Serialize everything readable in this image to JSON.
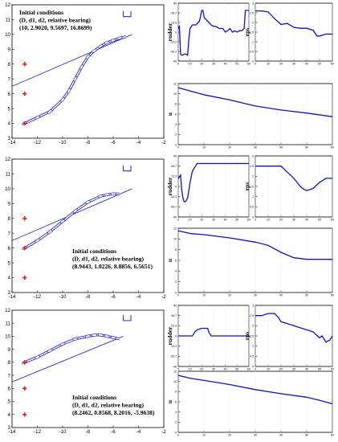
{
  "chart_data": [
    {
      "type": "line",
      "panel": "trajectory",
      "row": 0,
      "xlim": [
        -14,
        -2
      ],
      "ylim": [
        3,
        12
      ],
      "xticks": [
        -14,
        -12,
        -10,
        -8,
        -6,
        -4,
        -2
      ],
      "yticks": [
        3,
        4,
        5,
        6,
        7,
        8,
        9,
        10,
        11,
        12
      ],
      "annotation": [
        "Initial conditions",
        "(D, d1, d2, relative bearing)",
        "(10, 2.9020, 9.5697, 16.8699)"
      ],
      "markers": [
        {
          "x": -13,
          "y": 8
        },
        {
          "x": -13,
          "y": 6
        },
        {
          "x": -13,
          "y": 4
        }
      ],
      "reference_line": [
        {
          "x": -14,
          "y": 6.5
        },
        {
          "x": -4.5,
          "y": 10
        }
      ],
      "dock": {
        "x": [
          -5.2,
          -4.6
        ],
        "y": 11.2
      },
      "trajectory": {
        "x": [
          -13,
          -12,
          -11,
          -10,
          -9.5,
          -9,
          -8.5,
          -8,
          -7.5,
          -7,
          -6.5,
          -6,
          -5.5,
          -5
        ],
        "y": [
          4,
          4.4,
          4.8,
          5.6,
          6.2,
          7,
          7.8,
          8.5,
          8.9,
          9.2,
          9.45,
          9.6,
          9.75,
          9.85
        ]
      }
    },
    {
      "type": "line",
      "panel": "rudder",
      "row": 0,
      "ylabel": "rudder",
      "xlim": [
        0,
        60
      ],
      "ylim": [
        -40,
        40
      ],
      "xticks": [
        0,
        10,
        20,
        30,
        40,
        50,
        60
      ],
      "series": [
        {
          "x": [
            0,
            1,
            2,
            3,
            6,
            8,
            9,
            10,
            12,
            15,
            18,
            20,
            21,
            22,
            25,
            28,
            30,
            32,
            35,
            38,
            40,
            42,
            44,
            46,
            48,
            50,
            52,
            54,
            56,
            57,
            58,
            60
          ],
          "values": [
            5,
            8,
            -30,
            -32,
            -30,
            -32,
            -10,
            5,
            10,
            10,
            15,
            30,
            30,
            20,
            15,
            10,
            8,
            8,
            5,
            5,
            0,
            2,
            5,
            0,
            2,
            0,
            2,
            2,
            5,
            30,
            30,
            30
          ]
        }
      ]
    },
    {
      "type": "line",
      "panel": "rps",
      "row": 0,
      "ylabel": "rps",
      "xlim": [
        0,
        60
      ],
      "ylim": [
        0,
        3
      ],
      "xticks": [
        0,
        10,
        20,
        30,
        40,
        50,
        60
      ],
      "series": [
        {
          "x": [
            0,
            5,
            10,
            15,
            20,
            25,
            30,
            35,
            40,
            45,
            48,
            50,
            55,
            60
          ],
          "values": [
            2.6,
            2.6,
            2.55,
            2.2,
            1.9,
            1.95,
            1.75,
            1.7,
            1.7,
            1.6,
            1.3,
            1.3,
            1.4,
            1.4
          ]
        }
      ]
    },
    {
      "type": "line",
      "panel": "u",
      "row": 0,
      "ylabel": "u",
      "xlim": [
        0,
        60
      ],
      "ylim": [
        0,
        12
      ],
      "xticks": [
        0,
        10,
        20,
        30,
        40,
        50,
        60
      ],
      "series": [
        {
          "x": [
            0,
            5,
            10,
            20,
            30,
            40,
            50,
            60
          ],
          "values": [
            11.2,
            10.5,
            9.8,
            8.8,
            7.6,
            6.8,
            6.2,
            5.5
          ]
        }
      ]
    },
    {
      "type": "line",
      "panel": "trajectory",
      "row": 1,
      "xlim": [
        -14,
        -2
      ],
      "ylim": [
        3,
        12
      ],
      "xticks": [
        -14,
        -12,
        -10,
        -8,
        -6,
        -4,
        -2
      ],
      "yticks": [
        3,
        4,
        5,
        6,
        7,
        8,
        9,
        10,
        11,
        12
      ],
      "annotation": [
        "Initial conditions",
        "(D, d1, d2, relative bearing)",
        "(8.9443, 1.0226, 8.8856, 6.5651)"
      ],
      "markers": [
        {
          "x": -13,
          "y": 8
        },
        {
          "x": -13,
          "y": 6
        },
        {
          "x": -13,
          "y": 4
        }
      ],
      "reference_line": [
        {
          "x": -14,
          "y": 6.5
        },
        {
          "x": -4.5,
          "y": 10
        }
      ],
      "dock": {
        "x": [
          -5.2,
          -4.6
        ],
        "y": 11.2
      },
      "trajectory": {
        "x": [
          -13,
          -12,
          -11,
          -10,
          -9,
          -8,
          -7,
          -6.5,
          -6,
          -5.5
        ],
        "y": [
          6,
          6.5,
          7.1,
          7.8,
          8.5,
          9.1,
          9.5,
          9.6,
          9.65,
          9.65
        ]
      }
    },
    {
      "type": "line",
      "panel": "rudder",
      "row": 1,
      "ylabel": "rudder",
      "xlim": [
        0,
        60
      ],
      "ylim": [
        -40,
        40
      ],
      "xticks": [
        0,
        10,
        20,
        30,
        40,
        50,
        60
      ],
      "series": [
        {
          "x": [
            0,
            2,
            3,
            4,
            5,
            6,
            7,
            8,
            9,
            10,
            12,
            14,
            16,
            18,
            20,
            25,
            30,
            35,
            40,
            45,
            50,
            55,
            60
          ],
          "values": [
            10,
            15,
            -5,
            -15,
            -20,
            -20,
            -18,
            -15,
            -5,
            5,
            20,
            25,
            30,
            30,
            30,
            30,
            30,
            30,
            30,
            30,
            30,
            30,
            30
          ]
        }
      ]
    },
    {
      "type": "line",
      "panel": "rps",
      "row": 1,
      "ylabel": "rps",
      "xlim": [
        0,
        60
      ],
      "ylim": [
        0,
        3
      ],
      "xticks": [
        0,
        10,
        20,
        30,
        40,
        50,
        60
      ],
      "series": [
        {
          "x": [
            0,
            5,
            10,
            15,
            20,
            25,
            30,
            35,
            38,
            40,
            45,
            50,
            55,
            60
          ],
          "values": [
            2.5,
            2.5,
            2.5,
            2.5,
            2.5,
            2.2,
            1.9,
            1.5,
            1.35,
            1.3,
            1.4,
            1.7,
            1.9,
            1.9
          ]
        }
      ]
    },
    {
      "type": "line",
      "panel": "u",
      "row": 1,
      "ylabel": "u",
      "xlim": [
        0,
        60
      ],
      "ylim": [
        0,
        12
      ],
      "xticks": [
        0,
        10,
        20,
        30,
        40,
        50,
        60
      ],
      "series": [
        {
          "x": [
            0,
            5,
            10,
            20,
            30,
            35,
            40,
            45,
            50,
            55,
            60
          ],
          "values": [
            11.5,
            11,
            10.8,
            10.2,
            9.4,
            8.8,
            7.5,
            6.5,
            6.2,
            6.2,
            6.2
          ]
        }
      ]
    },
    {
      "type": "line",
      "panel": "trajectory",
      "row": 2,
      "xlim": [
        -14,
        -2
      ],
      "ylim": [
        3,
        12
      ],
      "xticks": [
        -14,
        -12,
        -10,
        -8,
        -6,
        -4,
        -2
      ],
      "yticks": [
        3,
        4,
        5,
        6,
        7,
        8,
        9,
        10,
        11,
        12
      ],
      "annotation": [
        "Initial conditions",
        "(D, d1, d2, relative bearing)",
        "(8.2462, 0.8568, 8.2016, -5.9638)"
      ],
      "markers": [
        {
          "x": -13,
          "y": 8
        },
        {
          "x": -13,
          "y": 6
        },
        {
          "x": -13,
          "y": 4
        }
      ],
      "reference_line": [
        {
          "x": -14,
          "y": 6.5
        },
        {
          "x": -5.2,
          "y": 10
        }
      ],
      "dock": {
        "x": [
          -5.2,
          -4.6
        ],
        "y": 11.2
      },
      "trajectory": {
        "x": [
          -13,
          -12,
          -11,
          -10,
          -9,
          -8,
          -7.5,
          -7,
          -6.5,
          -6,
          -5.5
        ],
        "y": [
          8,
          8.4,
          8.9,
          9.4,
          9.8,
          10,
          10.1,
          10.1,
          10,
          9.9,
          9.8
        ]
      }
    },
    {
      "type": "line",
      "panel": "rudder",
      "row": 2,
      "ylabel": "rudder",
      "xlim": [
        0,
        60
      ],
      "ylim": [
        -40,
        40
      ],
      "xticks": [
        0,
        10,
        20,
        30,
        40,
        50,
        60
      ],
      "series": [
        {
          "x": [
            0,
            5,
            10,
            12,
            14,
            16,
            20,
            25,
            26,
            28,
            30,
            35,
            40,
            45,
            50,
            55,
            60
          ],
          "values": [
            0,
            0,
            0,
            0,
            5,
            8,
            10,
            10,
            5,
            0,
            0,
            0,
            0,
            0,
            0,
            0,
            0
          ]
        }
      ]
    },
    {
      "type": "line",
      "panel": "rps",
      "row": 2,
      "ylabel": "rps",
      "xlim": [
        0,
        60
      ],
      "ylim": [
        0,
        3
      ],
      "xticks": [
        0,
        10,
        20,
        30,
        40,
        50,
        60
      ],
      "series": [
        {
          "x": [
            0,
            5,
            10,
            15,
            18,
            20,
            25,
            30,
            35,
            40,
            45,
            50,
            52,
            55,
            58,
            60
          ],
          "values": [
            2.5,
            2.5,
            2.6,
            2.6,
            2.4,
            2.2,
            2.1,
            2.0,
            1.9,
            1.8,
            1.7,
            1.4,
            1.5,
            1.2,
            1.3,
            1.5
          ]
        }
      ]
    },
    {
      "type": "line",
      "panel": "u",
      "row": 2,
      "ylabel": "u",
      "xlim": [
        0,
        60
      ],
      "ylim": [
        0,
        12
      ],
      "xticks": [
        0,
        10,
        20,
        30,
        40,
        50,
        60
      ],
      "series": [
        {
          "x": [
            0,
            5,
            10,
            20,
            30,
            40,
            50,
            55,
            60
          ],
          "values": [
            11.2,
            10.6,
            10.2,
            9.4,
            8.4,
            7.6,
            6.9,
            6.3,
            5.6
          ]
        }
      ]
    }
  ],
  "colors": {
    "line": "#1010c8",
    "marker": "#e02020",
    "axis": "#000000"
  }
}
